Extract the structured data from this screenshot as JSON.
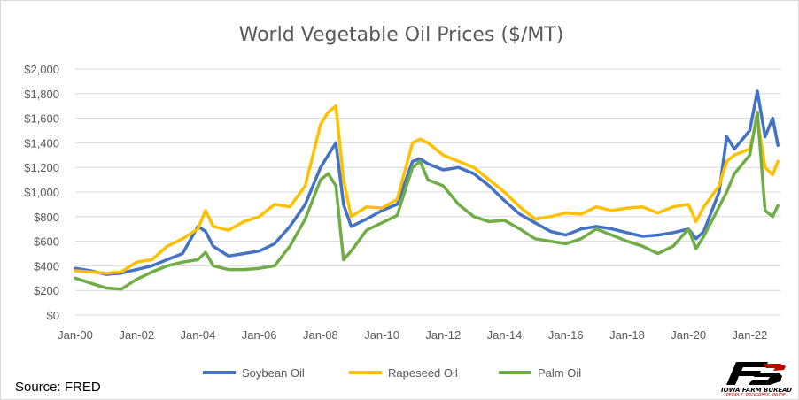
{
  "chart_data": {
    "type": "line",
    "title": "World Vegetable Oil Prices ($/MT)",
    "xlabel": "",
    "ylabel": "",
    "ylim": [
      0,
      2000
    ],
    "yticks": [
      "$0",
      "$200",
      "$400",
      "$600",
      "$800",
      "$1,000",
      "$1,200",
      "$1,400",
      "$1,600",
      "$1,800",
      "$2,000"
    ],
    "xticks": [
      "Jan-00",
      "Jan-02",
      "Jan-04",
      "Jan-06",
      "Jan-08",
      "Jan-10",
      "Jan-12",
      "Jan-14",
      "Jan-16",
      "Jan-18",
      "Jan-20",
      "Jan-22"
    ],
    "grid": true,
    "legend": "bottom",
    "x": [
      2000.0,
      2000.5,
      2001.0,
      2001.5,
      2002.0,
      2002.5,
      2003.0,
      2003.5,
      2004.0,
      2004.25,
      2004.5,
      2005.0,
      2005.5,
      2006.0,
      2006.5,
      2007.0,
      2007.5,
      2008.0,
      2008.25,
      2008.5,
      2008.75,
      2009.0,
      2009.5,
      2010.0,
      2010.5,
      2011.0,
      2011.25,
      2011.5,
      2012.0,
      2012.5,
      2013.0,
      2013.5,
      2014.0,
      2014.5,
      2015.0,
      2015.5,
      2016.0,
      2016.5,
      2017.0,
      2017.5,
      2018.0,
      2018.5,
      2019.0,
      2019.5,
      2020.0,
      2020.25,
      2020.5,
      2021.0,
      2021.25,
      2021.5,
      2022.0,
      2022.25,
      2022.5,
      2022.75,
      2022.92
    ],
    "series": [
      {
        "name": "Soybean Oil",
        "color": "#4472C4",
        "values": [
          380,
          360,
          330,
          340,
          370,
          400,
          450,
          500,
          720,
          680,
          560,
          480,
          500,
          520,
          580,
          720,
          900,
          1200,
          1300,
          1400,
          900,
          720,
          780,
          850,
          900,
          1250,
          1270,
          1230,
          1180,
          1200,
          1150,
          1050,
          930,
          820,
          750,
          680,
          650,
          700,
          720,
          700,
          670,
          640,
          650,
          670,
          700,
          620,
          680,
          1000,
          1450,
          1350,
          1500,
          1820,
          1450,
          1600,
          1380
        ]
      },
      {
        "name": "Rapeseed Oil",
        "color": "#FFC000",
        "values": [
          360,
          350,
          340,
          350,
          430,
          450,
          560,
          620,
          700,
          850,
          720,
          690,
          760,
          800,
          900,
          880,
          1050,
          1550,
          1650,
          1700,
          1100,
          800,
          880,
          870,
          940,
          1400,
          1430,
          1400,
          1300,
          1250,
          1200,
          1100,
          1000,
          880,
          780,
          800,
          830,
          820,
          880,
          850,
          870,
          880,
          830,
          880,
          900,
          760,
          880,
          1050,
          1250,
          1300,
          1350,
          1600,
          1200,
          1140,
          1250
        ]
      },
      {
        "name": "Palm Oil",
        "color": "#70AD47",
        "values": [
          300,
          260,
          220,
          210,
          290,
          350,
          400,
          430,
          450,
          510,
          400,
          370,
          370,
          380,
          400,
          560,
          780,
          1100,
          1150,
          1050,
          450,
          520,
          690,
          750,
          810,
          1200,
          1250,
          1100,
          1050,
          900,
          800,
          760,
          770,
          700,
          620,
          600,
          580,
          620,
          700,
          650,
          600,
          560,
          500,
          560,
          700,
          540,
          640,
          880,
          1000,
          1150,
          1300,
          1650,
          850,
          800,
          890
        ]
      }
    ]
  },
  "footer": {
    "source": "Source: FRED",
    "logo_text": "IOWA FARM BUREAU",
    "logo_tagline": "PEOPLE. PROGRESS. PRIDE."
  }
}
